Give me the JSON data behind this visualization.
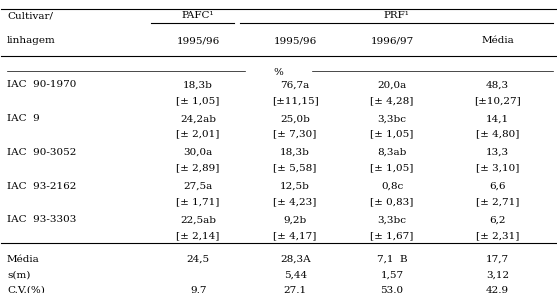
{
  "figsize": [
    5.57,
    2.93
  ],
  "dpi": 100,
  "col1_header": [
    "Cultivar/",
    "linhagem"
  ],
  "pafc_header": "PAFC¹",
  "prf_header": "PRF¹",
  "subheaders": [
    "1995/96",
    "1995/96",
    "1996/97",
    "Média"
  ],
  "percent_label": "%",
  "rows": [
    {
      "cultivar": "IAC  90-1970",
      "pafc": "18,3b",
      "pafc_se": "[± 1,05]",
      "prf1": "76,7a",
      "prf1_se": "[±11,15]",
      "prf2": "20,0a",
      "prf2_se": "[± 4,28]",
      "media": "48,3",
      "media_se": "[±10,27]"
    },
    {
      "cultivar": "IAC  9",
      "pafc": "24,2ab",
      "pafc_se": "[± 2,01]",
      "prf1": "25,0b",
      "prf1_se": "[± 7,30]",
      "prf2": "3,3bc",
      "prf2_se": "[± 1,05]",
      "media": "14,1",
      "media_se": "[± 4,80]"
    },
    {
      "cultivar": "IAC  90-3052",
      "pafc": "30,0a",
      "pafc_se": "[± 2,89]",
      "prf1": "18,3b",
      "prf1_se": "[± 5,58]",
      "prf2": "8,3ab",
      "prf2_se": "[± 1,05]",
      "media": "13,3",
      "media_se": "[± 3,10]"
    },
    {
      "cultivar": "IAC  93-2162",
      "pafc": "27,5a",
      "pafc_se": "[± 1,71]",
      "prf1": "12,5b",
      "prf1_se": "[± 4,23]",
      "prf2": "0,8c",
      "prf2_se": "[± 0,83]",
      "media": "6,6",
      "media_se": "[± 2,71]"
    },
    {
      "cultivar": "IAC  93-3303",
      "pafc": "22,5ab",
      "pafc_se": "[± 2,14]",
      "prf1": "9,2b",
      "prf1_se": "[± 4,17]",
      "prf2": "3,3bc",
      "prf2_se": "[± 1,67]",
      "media": "6,2",
      "media_se": "[± 2,31]"
    }
  ],
  "footer": {
    "media_label": "Média",
    "sm_label": "s(m)",
    "cv_label": "C.V.(%)",
    "pafc_media": "24,5",
    "pafc_cv": "9,7",
    "prf1_media": "28,3A",
    "prf1_sm": "5,44",
    "prf1_cv": "27,1",
    "prf2_media": "7,1  B",
    "prf2_sm": "1,57",
    "prf2_cv": "53,0",
    "media_media": "17,7",
    "media_sm": "3,12",
    "media_cv": "42,9"
  },
  "font_family": "serif",
  "font_size": 7.5,
  "bg_color": "#ffffff",
  "text_color": "#000000"
}
